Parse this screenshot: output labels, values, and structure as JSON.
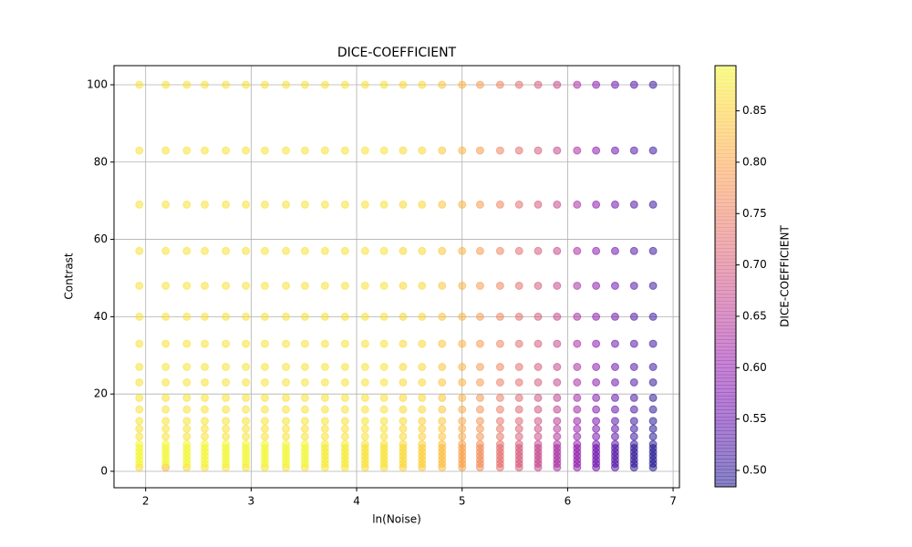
{
  "chart_data": {
    "type": "scatter",
    "title": "DICE-COEFFICIENT",
    "x_label": "ln(Noise)",
    "y_label": "Contrast",
    "colorbar_label": "DICE-COEFFICIENT",
    "colormap": "plasma",
    "alpha": 0.5,
    "grid": true,
    "x": [
      1.94,
      2.19,
      2.39,
      2.56,
      2.76,
      2.95,
      3.13,
      3.33,
      3.51,
      3.7,
      3.89,
      4.08,
      4.26,
      4.44,
      4.62,
      4.81,
      5.0,
      5.17,
      5.36,
      5.54,
      5.72,
      5.9,
      6.09,
      6.27,
      6.45,
      6.63,
      6.81
    ],
    "y": [
      1,
      2,
      3,
      4,
      5,
      6,
      7,
      9,
      11,
      13,
      16,
      19,
      23,
      27,
      33,
      40,
      48,
      57,
      69,
      83,
      100
    ],
    "values": [
      [
        0.86,
        0.89,
        0.89,
        0.89,
        0.89,
        0.89,
        0.89,
        0.87,
        0.87,
        0.87,
        0.87,
        0.87,
        0.87,
        0.87,
        0.87,
        0.87,
        0.87,
        0.87,
        0.87,
        0.87,
        0.87
      ],
      [
        0.82,
        0.89,
        0.89,
        0.89,
        0.89,
        0.89,
        0.89,
        0.87,
        0.87,
        0.87,
        0.87,
        0.87,
        0.87,
        0.87,
        0.87,
        0.87,
        0.87,
        0.87,
        0.87,
        0.87,
        0.87
      ],
      [
        0.86,
        0.89,
        0.89,
        0.89,
        0.89,
        0.89,
        0.89,
        0.87,
        0.87,
        0.87,
        0.87,
        0.87,
        0.87,
        0.87,
        0.87,
        0.87,
        0.87,
        0.87,
        0.87,
        0.87,
        0.87
      ],
      [
        0.87,
        0.89,
        0.89,
        0.89,
        0.89,
        0.89,
        0.89,
        0.87,
        0.87,
        0.87,
        0.87,
        0.87,
        0.87,
        0.87,
        0.87,
        0.87,
        0.87,
        0.87,
        0.87,
        0.87,
        0.87
      ],
      [
        0.87,
        0.89,
        0.89,
        0.89,
        0.89,
        0.89,
        0.89,
        0.87,
        0.87,
        0.87,
        0.87,
        0.87,
        0.87,
        0.87,
        0.87,
        0.87,
        0.87,
        0.87,
        0.87,
        0.87,
        0.87
      ],
      [
        0.87,
        0.89,
        0.89,
        0.89,
        0.89,
        0.89,
        0.89,
        0.87,
        0.87,
        0.87,
        0.87,
        0.87,
        0.87,
        0.87,
        0.87,
        0.87,
        0.87,
        0.87,
        0.87,
        0.87,
        0.87
      ],
      [
        0.87,
        0.89,
        0.89,
        0.89,
        0.89,
        0.89,
        0.89,
        0.87,
        0.87,
        0.87,
        0.87,
        0.87,
        0.87,
        0.87,
        0.87,
        0.87,
        0.87,
        0.87,
        0.87,
        0.87,
        0.87
      ],
      [
        0.87,
        0.89,
        0.89,
        0.89,
        0.89,
        0.89,
        0.89,
        0.87,
        0.87,
        0.87,
        0.87,
        0.87,
        0.87,
        0.87,
        0.87,
        0.87,
        0.87,
        0.87,
        0.87,
        0.87,
        0.87
      ],
      [
        0.87,
        0.89,
        0.89,
        0.89,
        0.89,
        0.89,
        0.89,
        0.87,
        0.87,
        0.87,
        0.87,
        0.87,
        0.87,
        0.87,
        0.87,
        0.87,
        0.87,
        0.87,
        0.87,
        0.87,
        0.87
      ],
      [
        0.87,
        0.88,
        0.88,
        0.88,
        0.88,
        0.88,
        0.88,
        0.87,
        0.87,
        0.87,
        0.87,
        0.87,
        0.87,
        0.87,
        0.87,
        0.87,
        0.87,
        0.87,
        0.87,
        0.87,
        0.87
      ],
      [
        0.87,
        0.88,
        0.88,
        0.88,
        0.88,
        0.88,
        0.88,
        0.87,
        0.87,
        0.87,
        0.87,
        0.87,
        0.87,
        0.87,
        0.87,
        0.87,
        0.87,
        0.87,
        0.87,
        0.87,
        0.87
      ],
      [
        0.86,
        0.87,
        0.87,
        0.87,
        0.87,
        0.87,
        0.87,
        0.87,
        0.87,
        0.87,
        0.87,
        0.87,
        0.87,
        0.87,
        0.87,
        0.87,
        0.87,
        0.87,
        0.87,
        0.87,
        0.87
      ],
      [
        0.86,
        0.87,
        0.87,
        0.87,
        0.87,
        0.87,
        0.87,
        0.87,
        0.87,
        0.87,
        0.87,
        0.87,
        0.87,
        0.87,
        0.87,
        0.87,
        0.87,
        0.87,
        0.87,
        0.87,
        0.87
      ],
      [
        0.85,
        0.86,
        0.86,
        0.86,
        0.86,
        0.86,
        0.86,
        0.86,
        0.86,
        0.86,
        0.86,
        0.86,
        0.86,
        0.86,
        0.86,
        0.86,
        0.86,
        0.86,
        0.86,
        0.86,
        0.86
      ],
      [
        0.84,
        0.85,
        0.85,
        0.85,
        0.85,
        0.85,
        0.85,
        0.85,
        0.85,
        0.85,
        0.86,
        0.86,
        0.86,
        0.86,
        0.86,
        0.86,
        0.86,
        0.86,
        0.86,
        0.86,
        0.86
      ],
      [
        0.83,
        0.83,
        0.83,
        0.83,
        0.83,
        0.83,
        0.83,
        0.84,
        0.84,
        0.84,
        0.84,
        0.84,
        0.84,
        0.84,
        0.84,
        0.84,
        0.84,
        0.84,
        0.84,
        0.84,
        0.84
      ],
      [
        0.8,
        0.8,
        0.8,
        0.8,
        0.8,
        0.8,
        0.8,
        0.81,
        0.81,
        0.81,
        0.81,
        0.82,
        0.82,
        0.82,
        0.82,
        0.82,
        0.82,
        0.82,
        0.82,
        0.82,
        0.82
      ],
      [
        0.77,
        0.77,
        0.77,
        0.77,
        0.77,
        0.77,
        0.77,
        0.78,
        0.78,
        0.78,
        0.78,
        0.78,
        0.79,
        0.79,
        0.79,
        0.79,
        0.79,
        0.79,
        0.79,
        0.79,
        0.79
      ],
      [
        0.73,
        0.73,
        0.73,
        0.73,
        0.73,
        0.73,
        0.73,
        0.74,
        0.74,
        0.74,
        0.75,
        0.75,
        0.75,
        0.76,
        0.76,
        0.76,
        0.76,
        0.76,
        0.76,
        0.76,
        0.76
      ],
      [
        0.7,
        0.7,
        0.7,
        0.7,
        0.7,
        0.7,
        0.7,
        0.71,
        0.71,
        0.72,
        0.72,
        0.72,
        0.73,
        0.73,
        0.73,
        0.73,
        0.73,
        0.73,
        0.73,
        0.73,
        0.73
      ],
      [
        0.67,
        0.67,
        0.67,
        0.67,
        0.67,
        0.67,
        0.67,
        0.68,
        0.68,
        0.69,
        0.69,
        0.69,
        0.7,
        0.7,
        0.7,
        0.7,
        0.7,
        0.7,
        0.7,
        0.7,
        0.7
      ],
      [
        0.63,
        0.63,
        0.63,
        0.63,
        0.63,
        0.63,
        0.63,
        0.64,
        0.65,
        0.65,
        0.66,
        0.66,
        0.67,
        0.67,
        0.67,
        0.67,
        0.67,
        0.67,
        0.67,
        0.67,
        0.67
      ],
      [
        0.6,
        0.6,
        0.6,
        0.6,
        0.6,
        0.6,
        0.6,
        0.6,
        0.61,
        0.61,
        0.62,
        0.62,
        0.63,
        0.63,
        0.63,
        0.63,
        0.63,
        0.63,
        0.63,
        0.63,
        0.63
      ],
      [
        0.56,
        0.56,
        0.56,
        0.56,
        0.56,
        0.56,
        0.56,
        0.57,
        0.57,
        0.57,
        0.58,
        0.58,
        0.59,
        0.59,
        0.59,
        0.59,
        0.59,
        0.59,
        0.59,
        0.59,
        0.59
      ],
      [
        0.53,
        0.53,
        0.53,
        0.53,
        0.53,
        0.53,
        0.53,
        0.54,
        0.54,
        0.54,
        0.55,
        0.55,
        0.56,
        0.56,
        0.56,
        0.56,
        0.56,
        0.56,
        0.56,
        0.56,
        0.56
      ],
      [
        0.5,
        0.5,
        0.5,
        0.5,
        0.5,
        0.5,
        0.5,
        0.51,
        0.51,
        0.51,
        0.52,
        0.52,
        0.53,
        0.53,
        0.53,
        0.53,
        0.53,
        0.53,
        0.53,
        0.53,
        0.53
      ],
      [
        0.49,
        0.49,
        0.49,
        0.49,
        0.49,
        0.49,
        0.49,
        0.49,
        0.49,
        0.49,
        0.5,
        0.5,
        0.5,
        0.51,
        0.51,
        0.51,
        0.51,
        0.51,
        0.51,
        0.51,
        0.51
      ]
    ],
    "xlim": [
      1.7,
      7.06
    ],
    "xticks": [
      2,
      3,
      4,
      5,
      6,
      7
    ],
    "ylim": [
      -4.25,
      104.95
    ],
    "yticks": [
      0,
      20,
      40,
      60,
      80,
      100
    ],
    "clim": [
      0.484,
      0.894
    ],
    "cticks": [
      {
        "value": 0.5,
        "label": "0.50"
      },
      {
        "value": 0.55,
        "label": "0.55"
      },
      {
        "value": 0.6,
        "label": "0.60"
      },
      {
        "value": 0.65,
        "label": "0.65"
      },
      {
        "value": 0.7,
        "label": "0.70"
      },
      {
        "value": 0.75,
        "label": "0.75"
      },
      {
        "value": 0.8,
        "label": "0.80"
      },
      {
        "value": 0.85,
        "label": "0.85"
      }
    ]
  }
}
